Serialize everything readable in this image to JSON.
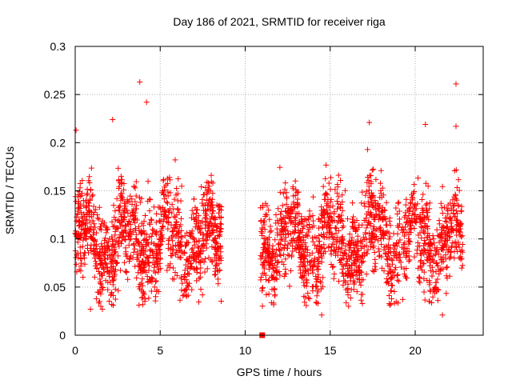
{
  "chart_data": {
    "type": "scatter",
    "title": "Day 186 of 2021, SRMTID for receiver riga",
    "xlabel": "GPS time / hours",
    "ylabel": "SRMTID / TECUs",
    "xlim": [
      0,
      24
    ],
    "ylim": [
      0,
      0.3
    ],
    "grid": true,
    "x_ticks": [
      0,
      5,
      10,
      15,
      20
    ],
    "x_tick_labels": [
      "0",
      "5",
      "10",
      "15",
      "20"
    ],
    "y_ticks": [
      0,
      0.05,
      0.1,
      0.15,
      0.2,
      0.25,
      0.3
    ],
    "y_tick_labels": [
      "0",
      "0.05",
      "0.1",
      "0.15",
      "0.2",
      "0.25",
      "0.3"
    ],
    "marker": "plus",
    "color": "#ff0000",
    "gap_hours": [
      8.6,
      10.9
    ],
    "segments": [
      {
        "x_start": 0.0,
        "x_end": 8.6,
        "n": 1150
      },
      {
        "x_start": 10.9,
        "x_end": 22.8,
        "n": 1500
      }
    ],
    "outliers": [
      {
        "x": 0.05,
        "y": 0.213
      },
      {
        "x": 3.8,
        "y": 0.263
      },
      {
        "x": 4.2,
        "y": 0.242
      },
      {
        "x": 2.2,
        "y": 0.224
      },
      {
        "x": 17.3,
        "y": 0.221
      },
      {
        "x": 22.4,
        "y": 0.261
      },
      {
        "x": 22.4,
        "y": 0.217
      },
      {
        "x": 20.6,
        "y": 0.219
      },
      {
        "x": 0.9,
        "y": 0.027
      },
      {
        "x": 1.6,
        "y": 0.027
      },
      {
        "x": 14.5,
        "y": 0.021
      },
      {
        "x": 21.6,
        "y": 0.021
      }
    ],
    "special_points": [
      {
        "x": 11.0,
        "y": 0.0,
        "marker": "square"
      }
    ]
  }
}
